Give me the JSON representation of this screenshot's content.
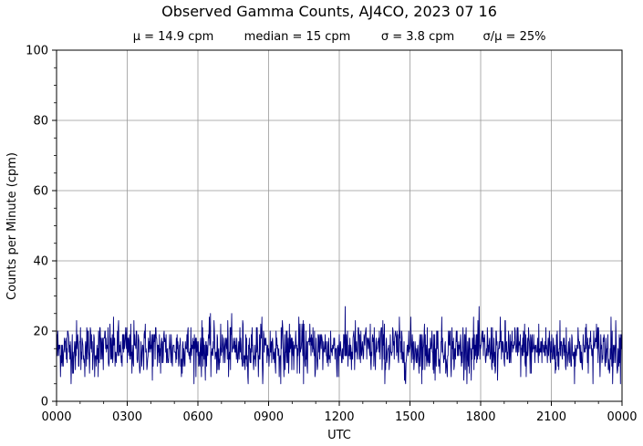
{
  "chart_data": {
    "type": "line",
    "title": "Observed Gamma Counts, AJ4CO, 2023 07 16",
    "subtitle_stats": [
      "μ = 14.9 cpm",
      "median = 15 cpm",
      "σ = 3.8 cpm",
      "σ/μ = 25%"
    ],
    "xlabel": "UTC",
    "ylabel": "Counts per Minute (cpm)",
    "x_ticks": [
      "0000",
      "0300",
      "0600",
      "0900",
      "1200",
      "1500",
      "1800",
      "2100",
      "0000"
    ],
    "x_range_minutes": [
      0,
      1440
    ],
    "y_ticks": [
      "0",
      "20",
      "40",
      "60",
      "80",
      "100"
    ],
    "ylim": [
      0,
      100
    ],
    "grid": true,
    "series": [
      {
        "color": "#000080",
        "sample_interval_minutes": 1,
        "mean": 14.9,
        "median": 15,
        "std": 3.8,
        "min": 5,
        "max": 28
      }
    ]
  }
}
